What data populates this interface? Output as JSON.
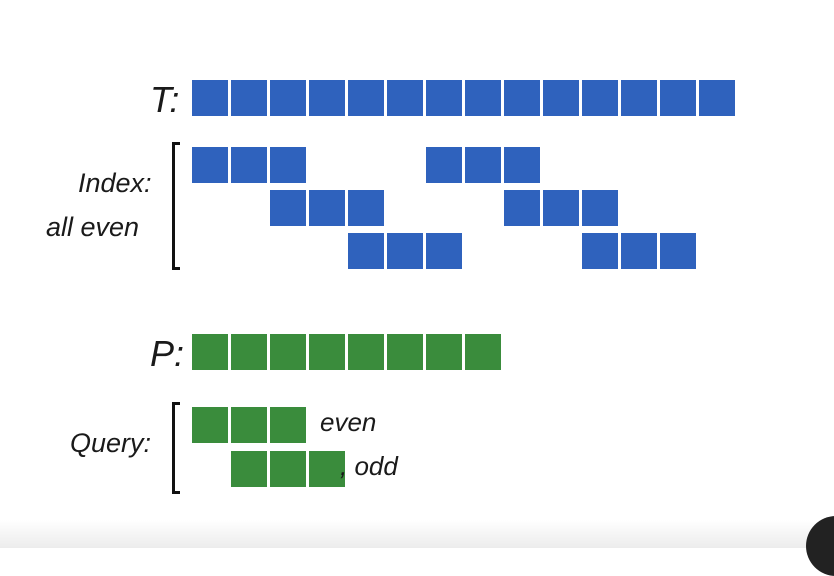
{
  "labels": {
    "t": "T:",
    "index_line1": "Index:",
    "index_line2": "all even",
    "p": "P:",
    "query": "Query:",
    "even": "even",
    "odd": ", odd"
  },
  "colors": {
    "text_blocks": "#2f62bd",
    "pattern_blocks": "#3a8c3c"
  },
  "t_length": 14,
  "p_length": 8,
  "index_rows": [
    {
      "groups": [
        {
          "start": 0,
          "length": 3
        },
        {
          "start": 6,
          "length": 3
        }
      ]
    },
    {
      "groups": [
        {
          "start": 2,
          "length": 3
        },
        {
          "start": 8,
          "length": 3
        }
      ]
    },
    {
      "groups": [
        {
          "start": 4,
          "length": 3
        },
        {
          "start": 10,
          "length": 3
        }
      ]
    }
  ],
  "query_rows": [
    {
      "start": 0,
      "length": 3,
      "label": "even"
    },
    {
      "start": 1,
      "length": 3,
      "label": "odd"
    }
  ]
}
